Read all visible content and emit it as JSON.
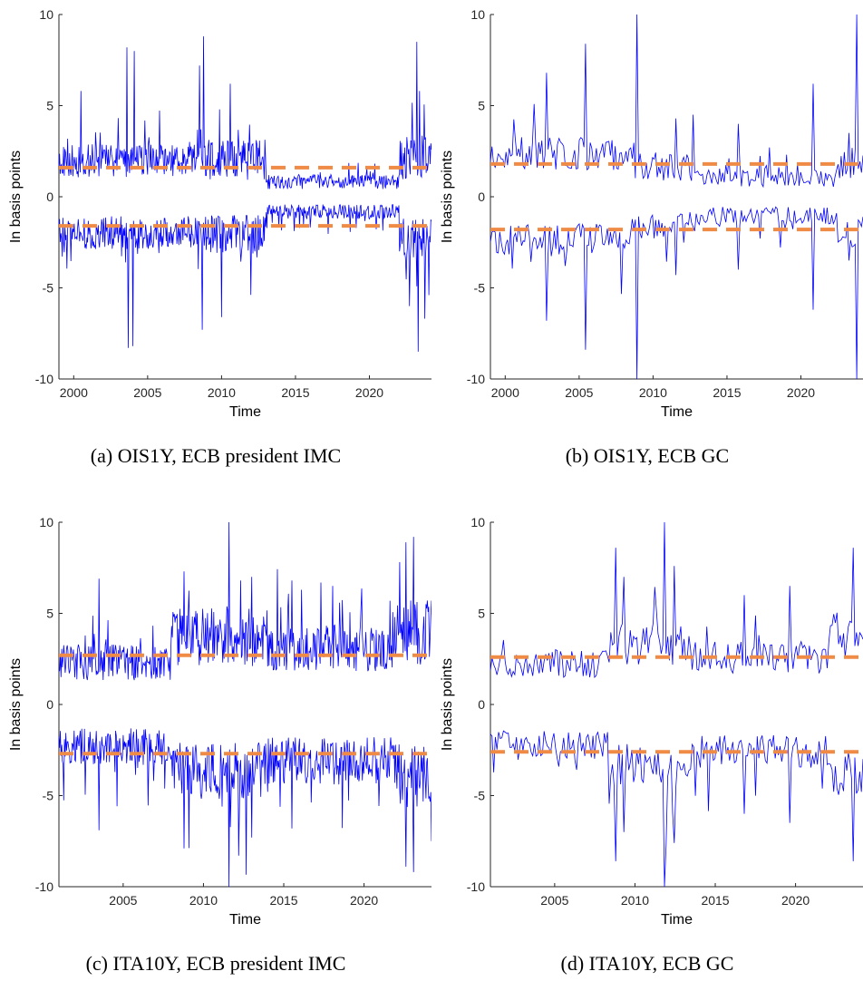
{
  "chart_data": [
    {
      "type": "line",
      "caption": "(a) OIS1Y, ECB president IMC",
      "xlabel": "Time",
      "ylabel": "In basis points",
      "xlim": [
        1999.0,
        2024.2
      ],
      "ylim": [
        -10,
        10
      ],
      "xticks": [
        2000,
        2005,
        2010,
        2015,
        2020
      ],
      "yticks": [
        -10,
        -5,
        0,
        5,
        10
      ],
      "threshold": 1.6,
      "start": 1999.0,
      "end": 2024.2,
      "n": 560,
      "seed": 11,
      "regimes": [
        {
          "from": 1999.0,
          "to": 2008.9,
          "base": 1.7,
          "spread": 0.9
        },
        {
          "from": 2008.9,
          "to": 2013.0,
          "base": 1.7,
          "spread": 1.1
        },
        {
          "from": 2013.0,
          "to": 2022.0,
          "base": 0.7,
          "spread": 0.4
        },
        {
          "from": 2022.0,
          "to": 2024.2,
          "base": 1.8,
          "spread": 1.2
        }
      ],
      "upper_spikes": [
        [
          2000.5,
          5.8
        ],
        [
          2003.6,
          8.2
        ],
        [
          2004.1,
          8.0
        ],
        [
          2008.5,
          7.2
        ],
        [
          2008.8,
          8.8
        ],
        [
          2010.6,
          6.2
        ],
        [
          2023.2,
          8.5
        ],
        [
          2023.4,
          5.8
        ]
      ],
      "lower_spikes": [
        [
          2003.7,
          -8.3
        ],
        [
          2004.0,
          -8.2
        ],
        [
          2008.7,
          -7.3
        ],
        [
          2010.0,
          -6.6
        ],
        [
          2022.7,
          -6.0
        ],
        [
          2023.3,
          -8.5
        ],
        [
          2024.0,
          -5.4
        ]
      ],
      "series": [
        {
          "color": "#0000ff"
        },
        {
          "color": "#ef8b45"
        }
      ]
    },
    {
      "type": "line",
      "caption": "(b) OIS1Y, ECB GC",
      "xlabel": "Time",
      "ylabel": "In basis points",
      "xlim": [
        1999.0,
        2024.2
      ],
      "ylim": [
        -10,
        10
      ],
      "xticks": [
        2000,
        2005,
        2010,
        2015,
        2020
      ],
      "yticks": [
        -10,
        -5,
        0,
        5,
        10
      ],
      "threshold": 1.8,
      "start": 1999.0,
      "end": 2024.2,
      "n": 240,
      "seed": 23,
      "regimes": [
        {
          "from": 1999.0,
          "to": 2008.5,
          "base": 2.1,
          "spread": 0.9
        },
        {
          "from": 2008.5,
          "to": 2013.0,
          "base": 1.4,
          "spread": 0.8
        },
        {
          "from": 2013.0,
          "to": 2022.5,
          "base": 0.9,
          "spread": 0.5
        },
        {
          "from": 2022.5,
          "to": 2024.2,
          "base": 1.6,
          "spread": 0.9
        }
      ],
      "upper_spikes": [
        [
          2002.8,
          6.8
        ],
        [
          2005.4,
          8.4
        ],
        [
          2008.9,
          10.0
        ],
        [
          2011.6,
          4.3
        ],
        [
          2015.8,
          4.0
        ],
        [
          2020.8,
          6.2
        ],
        [
          2023.2,
          3.5
        ],
        [
          2023.8,
          10.0
        ]
      ],
      "lower_spikes": [
        [
          2002.8,
          -6.8
        ],
        [
          2005.4,
          -8.4
        ],
        [
          2008.9,
          -10.0
        ],
        [
          2011.6,
          -4.3
        ],
        [
          2015.8,
          -4.0
        ],
        [
          2020.8,
          -6.2
        ],
        [
          2023.2,
          -3.5
        ],
        [
          2023.8,
          -10.0
        ]
      ],
      "series": [
        {
          "color": "#0000ff"
        },
        {
          "color": "#ef8b45"
        }
      ]
    },
    {
      "type": "line",
      "caption": "(c) ITA10Y, ECB president IMC",
      "xlabel": "Time",
      "ylabel": "In basis points",
      "xlim": [
        2001.0,
        2024.2
      ],
      "ylim": [
        -10,
        10
      ],
      "xticks": [
        2005,
        2010,
        2015,
        2020
      ],
      "yticks": [
        -10,
        -5,
        0,
        5,
        10
      ],
      "threshold": 2.7,
      "start": 2001.0,
      "end": 2024.2,
      "n": 540,
      "seed": 37,
      "regimes": [
        {
          "from": 2001.0,
          "to": 2008.0,
          "base": 2.0,
          "spread": 1.0
        },
        {
          "from": 2008.0,
          "to": 2014.0,
          "base": 3.2,
          "spread": 1.6
        },
        {
          "from": 2014.0,
          "to": 2022.0,
          "base": 2.7,
          "spread": 1.3
        },
        {
          "from": 2022.0,
          "to": 2024.2,
          "base": 3.4,
          "spread": 1.8
        }
      ],
      "upper_spikes": [
        [
          2003.5,
          6.9
        ],
        [
          2008.8,
          7.3
        ],
        [
          2011.6,
          10.0
        ],
        [
          2012.3,
          6.8
        ],
        [
          2013.0,
          7.0
        ],
        [
          2015.5,
          6.8
        ],
        [
          2022.6,
          8.9
        ],
        [
          2023.1,
          9.2
        ]
      ],
      "lower_spikes": [
        [
          2003.5,
          -6.9
        ],
        [
          2008.8,
          -7.9
        ],
        [
          2011.6,
          -10.0
        ],
        [
          2012.2,
          -8.3
        ],
        [
          2013.0,
          -7.3
        ],
        [
          2015.5,
          -6.8
        ],
        [
          2022.6,
          -8.9
        ],
        [
          2023.1,
          -9.2
        ]
      ],
      "series": [
        {
          "color": "#0000ff"
        },
        {
          "color": "#ef8b45"
        }
      ]
    },
    {
      "type": "line",
      "caption": "(d) ITA10Y, ECB GC",
      "xlabel": "Time",
      "ylabel": "In basis points",
      "xlim": [
        2001.0,
        2024.2
      ],
      "ylim": [
        -10,
        10
      ],
      "xticks": [
        2005,
        2010,
        2015,
        2020
      ],
      "yticks": [
        -10,
        -5,
        0,
        5,
        10
      ],
      "threshold": 2.6,
      "start": 2001.0,
      "end": 2024.2,
      "n": 230,
      "seed": 53,
      "regimes": [
        {
          "from": 2001.0,
          "to": 2008.3,
          "base": 2.0,
          "spread": 0.8
        },
        {
          "from": 2008.3,
          "to": 2013.5,
          "base": 3.0,
          "spread": 1.2
        },
        {
          "from": 2013.5,
          "to": 2022.0,
          "base": 2.3,
          "spread": 0.9
        },
        {
          "from": 2022.0,
          "to": 2024.2,
          "base": 3.5,
          "spread": 1.3
        }
      ],
      "upper_spikes": [
        [
          2008.8,
          8.6
        ],
        [
          2009.3,
          7.0
        ],
        [
          2011.8,
          10.0
        ],
        [
          2012.4,
          7.6
        ],
        [
          2016.8,
          6.0
        ],
        [
          2019.6,
          6.5
        ],
        [
          2023.6,
          8.6
        ]
      ],
      "lower_spikes": [
        [
          2008.8,
          -8.6
        ],
        [
          2009.3,
          -7.0
        ],
        [
          2011.8,
          -10.0
        ],
        [
          2012.4,
          -7.6
        ],
        [
          2016.8,
          -6.0
        ],
        [
          2019.6,
          -6.5
        ],
        [
          2023.6,
          -8.6
        ]
      ],
      "series": [
        {
          "color": "#0000ff"
        },
        {
          "color": "#ef8b45"
        }
      ]
    }
  ]
}
